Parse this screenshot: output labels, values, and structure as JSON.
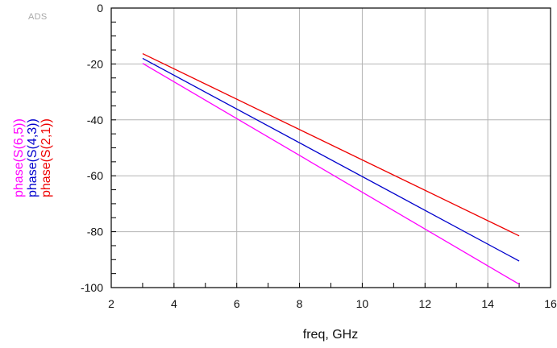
{
  "watermark": "ADS",
  "chart_data": {
    "type": "line",
    "xlabel": "freq, GHz",
    "ylabel": "",
    "xlim": [
      2,
      16
    ],
    "ylim": [
      -100,
      0
    ],
    "xticks": [
      2,
      4,
      6,
      8,
      10,
      12,
      14,
      16
    ],
    "yticks": [
      0,
      -20,
      -40,
      -60,
      -80,
      -100
    ],
    "grid": true,
    "legend_placement": "left (rotated, vertical)",
    "series": [
      {
        "name": "phase(S(6,5))",
        "color": "#ff00ff",
        "x": [
          3,
          15
        ],
        "y": [
          -19.8,
          -98.8
        ]
      },
      {
        "name": "phase(S(4,3))",
        "color": "#0000cc",
        "x": [
          3,
          15
        ],
        "y": [
          -18.0,
          -90.5
        ]
      },
      {
        "name": "phase(S(2,1))",
        "color": "#ee0000",
        "x": [
          3,
          15
        ],
        "y": [
          -16.3,
          -81.5
        ]
      }
    ]
  }
}
